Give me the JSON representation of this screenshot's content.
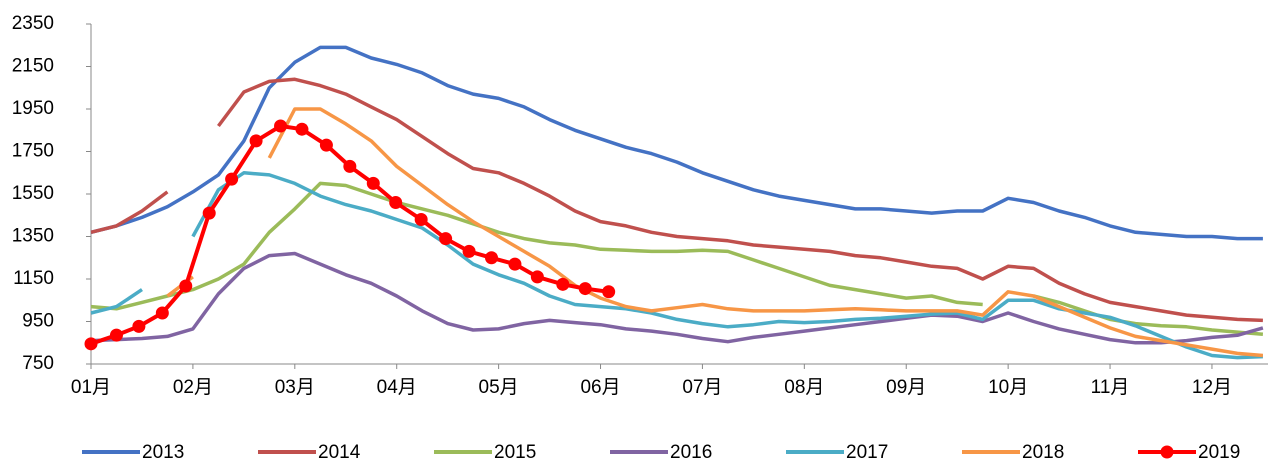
{
  "chart_data": {
    "type": "line",
    "x": [
      1,
      1.25,
      1.5,
      1.75,
      2,
      2.25,
      2.5,
      2.75,
      3,
      3.25,
      3.5,
      3.75,
      4,
      4.25,
      4.5,
      4.75,
      5,
      5.25,
      5.5,
      5.75,
      6,
      6.25,
      6.5,
      6.75,
      7,
      7.25,
      7.5,
      7.75,
      8,
      8.25,
      8.5,
      8.75,
      9,
      9.25,
      9.5,
      9.75,
      10,
      10.25,
      10.5,
      10.75,
      11,
      11.25,
      11.5,
      11.75,
      12,
      12.25,
      12.5
    ],
    "xlim": [
      1,
      12.55
    ],
    "xticks": [
      {
        "value": 1,
        "label": "01月"
      },
      {
        "value": 2,
        "label": "02月"
      },
      {
        "value": 3,
        "label": "03月"
      },
      {
        "value": 4,
        "label": "04月"
      },
      {
        "value": 5,
        "label": "05月"
      },
      {
        "value": 6,
        "label": "06月"
      },
      {
        "value": 7,
        "label": "07月"
      },
      {
        "value": 8,
        "label": "08月"
      },
      {
        "value": 9,
        "label": "09月"
      },
      {
        "value": 10,
        "label": "10月"
      },
      {
        "value": 11,
        "label": "11月"
      },
      {
        "value": 12,
        "label": "12月"
      }
    ],
    "ylim": [
      750,
      2350
    ],
    "yticks": [
      750,
      950,
      1150,
      1350,
      1550,
      1750,
      1950,
      2150,
      2350
    ],
    "legend": "bottom",
    "series": [
      {
        "name": "2013",
        "color": "#4472c4",
        "values": [
          1370,
          1400,
          1440,
          1490,
          1560,
          1640,
          1800,
          2050,
          2170,
          2240,
          2240,
          2190,
          2160,
          2120,
          2060,
          2020,
          2000,
          1960,
          1900,
          1850,
          1810,
          1770,
          1740,
          1700,
          1650,
          1610,
          1570,
          1540,
          1520,
          1500,
          1480,
          1480,
          1470,
          1460,
          1470,
          1470,
          1530,
          1510,
          1470,
          1440,
          1400,
          1370,
          1360,
          1350,
          1350,
          1340,
          1340
        ]
      },
      {
        "name": "2014",
        "color": "#c0504d",
        "values": [
          1370,
          1400,
          1470,
          1560,
          null,
          1870,
          2030,
          2080,
          2090,
          2060,
          2020,
          1960,
          1900,
          1820,
          1740,
          1670,
          1650,
          1600,
          1540,
          1470,
          1420,
          1400,
          1370,
          1350,
          1340,
          1330,
          1310,
          1300,
          1290,
          1280,
          1260,
          1250,
          1230,
          1210,
          1200,
          1150,
          1210,
          1200,
          1130,
          1080,
          1040,
          1020,
          1000,
          980,
          970,
          960,
          955
        ]
      },
      {
        "name": "2015",
        "color": "#9bbb59",
        "values": [
          1020,
          1010,
          1040,
          1070,
          1100,
          1150,
          1220,
          1370,
          1480,
          1600,
          1590,
          1550,
          1510,
          1480,
          1450,
          1410,
          1370,
          1340,
          1320,
          1310,
          1290,
          1285,
          1280,
          1280,
          1285,
          1280,
          1240,
          1200,
          1160,
          1120,
          1100,
          1080,
          1060,
          1070,
          1040,
          1030,
          null,
          1070,
          1040,
          1000,
          960,
          940,
          930,
          925,
          910,
          900,
          890
        ]
      },
      {
        "name": "2016",
        "color": "#8064a2",
        "values": [
          860,
          865,
          870,
          880,
          915,
          1080,
          1200,
          1260,
          1270,
          1220,
          1170,
          1130,
          1070,
          1000,
          940,
          910,
          915,
          940,
          955,
          945,
          935,
          915,
          905,
          890,
          870,
          855,
          875,
          890,
          905,
          920,
          935,
          950,
          965,
          980,
          975,
          950,
          990,
          950,
          915,
          890,
          865,
          850,
          850,
          860,
          875,
          885,
          920
        ]
      },
      {
        "name": "2017",
        "color": "#4bacc6",
        "values": [
          990,
          1020,
          1100,
          null,
          1350,
          1570,
          1650,
          1640,
          1600,
          1540,
          1500,
          1470,
          1430,
          1390,
          1310,
          1220,
          1170,
          1130,
          1070,
          1030,
          1020,
          1010,
          990,
          960,
          940,
          925,
          935,
          950,
          945,
          950,
          960,
          965,
          975,
          985,
          990,
          960,
          1050,
          1050,
          1010,
          990,
          970,
          930,
          880,
          830,
          790,
          780,
          785
        ]
      },
      {
        "name": "2018",
        "color": "#f79646",
        "values": [
          null,
          null,
          null,
          1070,
          1160,
          null,
          null,
          1720,
          1950,
          1950,
          1880,
          1800,
          1680,
          1590,
          1500,
          1420,
          1350,
          1280,
          1210,
          1120,
          1060,
          1020,
          1000,
          1015,
          1030,
          1010,
          1000,
          1000,
          1000,
          1005,
          1010,
          1005,
          1000,
          1000,
          1000,
          980,
          1090,
          1070,
          1020,
          970,
          920,
          880,
          860,
          840,
          820,
          800,
          790
        ]
      },
      {
        "name": "2019",
        "color": "#ff0000",
        "markers": true,
        "x": [
          1,
          1.25,
          1.47,
          1.7,
          1.93,
          2.16,
          2.38,
          2.62,
          2.86,
          3.07,
          3.31,
          3.54,
          3.77,
          3.99,
          4.24,
          4.48,
          4.71,
          4.93,
          5.16,
          5.38,
          5.63,
          5.85,
          6.08
        ],
        "values": [
          845,
          886,
          927,
          990,
          1117,
          1460,
          1620,
          1800,
          1870,
          1855,
          1780,
          1680,
          1600,
          1510,
          1430,
          1340,
          1280,
          1250,
          1220,
          1160,
          1125,
          1105,
          1090
        ]
      }
    ]
  }
}
